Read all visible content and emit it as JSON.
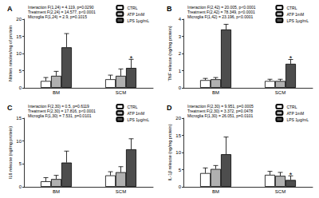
{
  "chart_data": [
    {
      "type": "bar",
      "panel": "A",
      "stats": [
        "Interaction F(1,24) = 4.119, p=0.0290",
        "Treatment F(2,24) = 14.577, p<0.0001",
        "Microglia F(1,24) = 2.9, p=0.1015"
      ],
      "ylabel": "Nitrites nmoles/mg of protein",
      "categories": [
        "BM",
        "SCM"
      ],
      "series": [
        {
          "name": "CTRL",
          "color": "#ffffff",
          "values": [
            2.0,
            2.5
          ],
          "errors": [
            1.0,
            1.2
          ]
        },
        {
          "name": "ATP 1mM",
          "color": "#b0b0b0",
          "values": [
            3.5,
            3.5
          ],
          "errors": [
            1.3,
            2.0
          ]
        },
        {
          "name": "LPS 1μg/mL",
          "color": "#4d4d4d",
          "values": [
            11.8,
            5.8
          ],
          "errors": [
            4.0,
            2.5
          ]
        }
      ],
      "annotations": [
        {
          "text": "*",
          "category": "SCM",
          "series": "LPS 1μg/mL"
        }
      ],
      "ylim": [
        0,
        20
      ],
      "yticks": [
        0,
        5,
        10,
        15,
        20
      ],
      "grid": false,
      "legend": "upper right"
    },
    {
      "type": "bar",
      "panel": "B",
      "stats": [
        "Interaction F(2,42) = 20.005, p<0.0001",
        "Treatment F(2,42) = 78.349, p<0.0001",
        "Microglia F(1,42) = 23.196, p<0.0001"
      ],
      "ylabel": "TNF release (ng/mg protein)",
      "categories": [
        "BM",
        "SCM"
      ],
      "series": [
        {
          "name": "CTRL",
          "color": "#ffffff",
          "values": [
            0.45,
            0.4
          ],
          "errors": [
            0.1,
            0.1
          ]
        },
        {
          "name": "ATP 1mM",
          "color": "#b0b0b0",
          "values": [
            0.5,
            0.4
          ],
          "errors": [
            0.1,
            0.1
          ]
        },
        {
          "name": "LPS 1μg/mL",
          "color": "#4d4d4d",
          "values": [
            3.4,
            1.4
          ],
          "errors": [
            0.3,
            0.25
          ]
        }
      ],
      "annotations": [
        {
          "text": "*",
          "category": "SCM",
          "series": "LPS 1μg/mL"
        }
      ],
      "ylim": [
        0,
        4
      ],
      "yticks": [
        0,
        1,
        2,
        3,
        4
      ],
      "grid": false,
      "legend": "upper right"
    },
    {
      "type": "bar",
      "panel": "C",
      "stats": [
        "Interaction F(2,30) = 0.5, p=0.6119",
        "Treatment F(2,30) = 17.816, p<0.0001",
        "Microglia F(1,30) = 7.531, p=0.0101"
      ],
      "ylabel": "IL6 release (ng/mg protein)",
      "categories": [
        "BM",
        "SCM"
      ],
      "series": [
        {
          "name": "CTRL",
          "color": "#ffffff",
          "values": [
            1.2,
            2.5
          ],
          "errors": [
            0.8,
            0.8
          ]
        },
        {
          "name": "ATP 1mM",
          "color": "#b0b0b0",
          "values": [
            1.7,
            3.2
          ],
          "errors": [
            0.8,
            1.2
          ]
        },
        {
          "name": "LPS 1μg/mL",
          "color": "#4d4d4d",
          "values": [
            5.3,
            8.2
          ],
          "errors": [
            2.5,
            2.3
          ]
        }
      ],
      "ylim": [
        0,
        15
      ],
      "yticks": [
        0,
        5,
        10,
        15
      ],
      "grid": false,
      "legend": "upper right"
    },
    {
      "type": "bar",
      "panel": "D",
      "stats": [
        "Interaction F(2,30) = 9.951, p=0.0005",
        "Treatment F(2,30) = 3.372, p=0.0478",
        "Microglia F(1,30) = 26.051, p=0.0101"
      ],
      "ylabel": "IL-1β release (ng/mg protein)",
      "categories": [
        "BM",
        "SCM"
      ],
      "series": [
        {
          "name": "CTRL",
          "color": "#ffffff",
          "values": [
            4.0,
            3.5
          ],
          "errors": [
            1.5,
            1.0
          ]
        },
        {
          "name": "ATP 1mM",
          "color": "#b0b0b0",
          "values": [
            5.2,
            3.2
          ],
          "errors": [
            1.0,
            1.0
          ]
        },
        {
          "name": "LPS 1μg/mL",
          "color": "#4d4d4d",
          "values": [
            9.5,
            2.0
          ],
          "errors": [
            5.0,
            1.2
          ]
        }
      ],
      "annotations": [
        {
          "text": "*",
          "category": "SCM",
          "series": "LPS 1μg/mL"
        }
      ],
      "ylim": [
        0,
        20
      ],
      "yticks": [
        0,
        5,
        10,
        15,
        20
      ],
      "grid": false,
      "legend": "upper right"
    }
  ]
}
